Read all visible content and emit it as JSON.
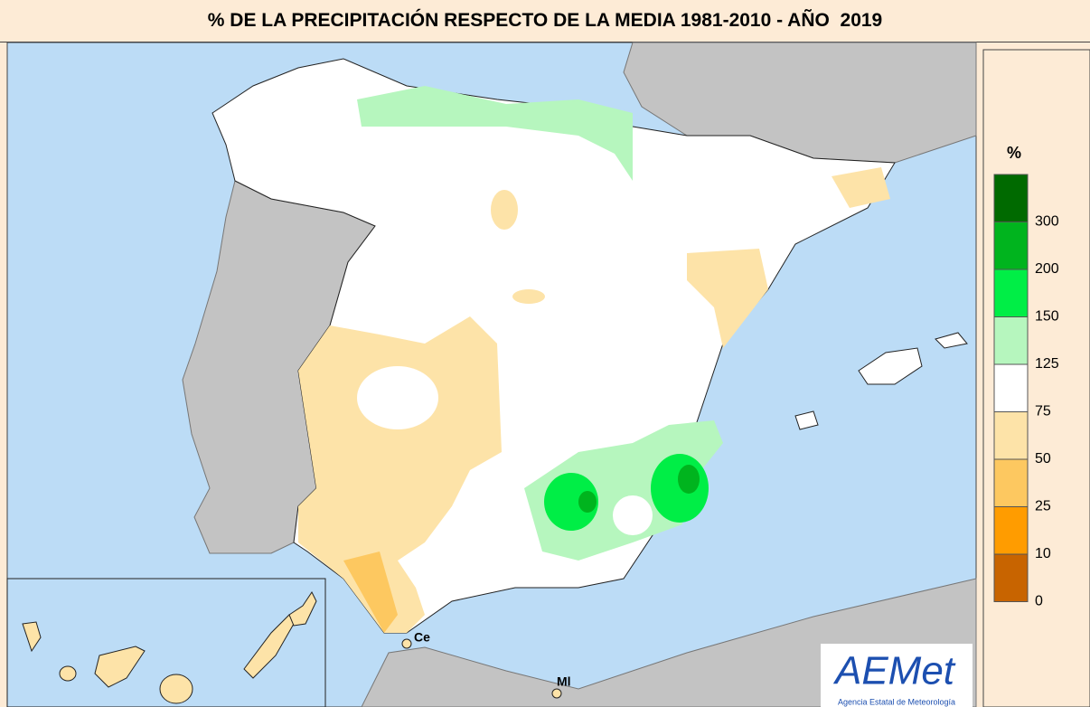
{
  "title": "% DE LA PRECIPITACIÓN RESPECTO DE LA MEDIA 1981-2010 - AÑO  2019",
  "legend": {
    "unit": "%",
    "classes": [
      {
        "label": "300",
        "color": "#006a00"
      },
      {
        "label": "200",
        "color": "#00b41e"
      },
      {
        "label": "150",
        "color": "#00ee46"
      },
      {
        "label": "125",
        "color": "#b6f6be"
      },
      {
        "label": "75",
        "color": "#ffffff"
      },
      {
        "label": "50",
        "color": "#fde3a8"
      },
      {
        "label": "25",
        "color": "#fdc860"
      },
      {
        "label": "10",
        "color": "#ff9c00"
      },
      {
        "label": "0",
        "color": "#c86400"
      }
    ]
  },
  "places": [
    "Ce",
    "Ml"
  ],
  "logo": {
    "name": "AEMet",
    "subtitle": "Agencia Estatal de Meteorología"
  }
}
